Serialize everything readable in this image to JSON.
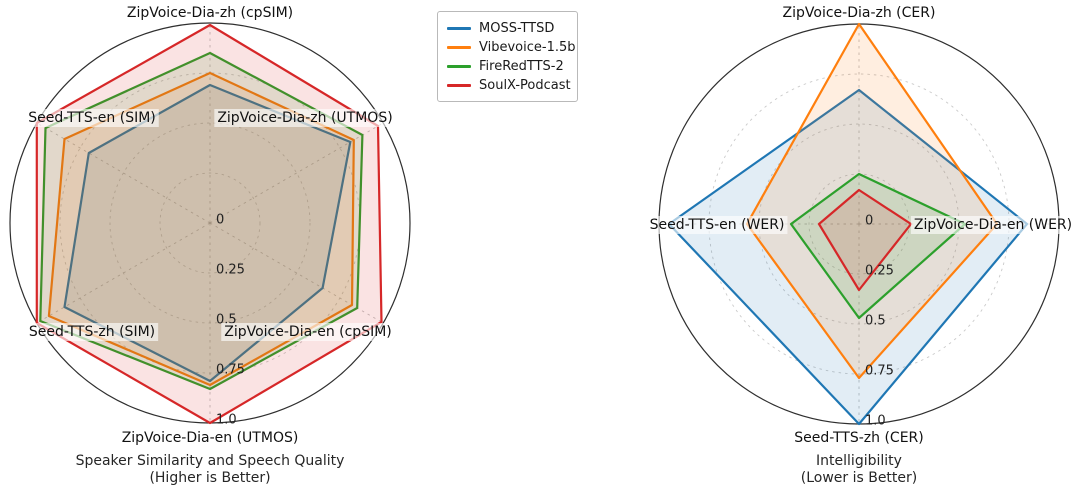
{
  "legend": {
    "entries": [
      {
        "label": "MOSS-TTSD",
        "color": "#1f77b4"
      },
      {
        "label": "Vibevoice-1.5b",
        "color": "#ff7f0e"
      },
      {
        "label": "FireRedTTS-2",
        "color": "#2ca02c"
      },
      {
        "label": "SoulX-Podcast",
        "color": "#d62728"
      }
    ]
  },
  "chart_data": [
    {
      "type": "radar",
      "title": "Speaker Similarity and Speech Quality",
      "subtitle": "(Higher is Better)",
      "categories": [
        "ZipVoice-Dia-zh (cpSIM)",
        "ZipVoice-Dia-zh (UTMOS)",
        "ZipVoice-Dia-en (cpSIM)",
        "ZipVoice-Dia-en (UTMOS)",
        "Seed-TTS-zh (SIM)",
        "Seed-TTS-en (SIM)"
      ],
      "series": [
        {
          "name": "MOSS-TTSD",
          "color": "#1f77b4",
          "values": [
            0.69,
            0.81,
            0.65,
            0.79,
            0.84,
            0.7
          ]
        },
        {
          "name": "Vibevoice-1.5b",
          "color": "#ff7f0e",
          "values": [
            0.75,
            0.83,
            0.82,
            0.81,
            0.93,
            0.84
          ]
        },
        {
          "name": "FireRedTTS-2",
          "color": "#2ca02c",
          "values": [
            0.85,
            0.88,
            0.85,
            0.83,
            0.98,
            0.95
          ]
        },
        {
          "name": "SoulX-Podcast",
          "color": "#d62728",
          "values": [
            0.99,
            0.97,
            0.99,
            1.0,
            1.0,
            1.0
          ]
        }
      ],
      "rticks": [
        0,
        0.25,
        0.5,
        0.75,
        1.0
      ],
      "rtick_labels": [
        "0",
        "0.25",
        "0.5",
        "0.75",
        "1.0"
      ],
      "rlim": [
        0,
        1.0
      ],
      "grid": true,
      "legend_position": "top-center"
    },
    {
      "type": "radar",
      "title": "Intelligibility",
      "subtitle": "(Lower is Better)",
      "categories": [
        "ZipVoice-Dia-zh (CER)",
        "ZipVoice-Dia-en (WER)",
        "Seed-TTS-zh (CER)",
        "Seed-TTS-en (WER)"
      ],
      "series": [
        {
          "name": "MOSS-TTSD",
          "color": "#1f77b4",
          "values": [
            0.67,
            0.84,
            1.0,
            0.95
          ]
        },
        {
          "name": "Vibevoice-1.5b",
          "color": "#ff7f0e",
          "values": [
            1.0,
            0.69,
            0.77,
            0.56
          ]
        },
        {
          "name": "FireRedTTS-2",
          "color": "#2ca02c",
          "values": [
            0.25,
            0.53,
            0.47,
            0.34
          ]
        },
        {
          "name": "SoulX-Podcast",
          "color": "#d62728",
          "values": [
            0.17,
            0.26,
            0.33,
            0.2
          ]
        }
      ],
      "rticks": [
        0,
        0.25,
        0.5,
        0.75,
        1.0
      ],
      "rtick_labels": [
        "0",
        "0.25",
        "0.5",
        "0.75",
        "1.0"
      ],
      "rlim": [
        0,
        1.0
      ],
      "grid": true,
      "legend_position": "top-center"
    }
  ]
}
